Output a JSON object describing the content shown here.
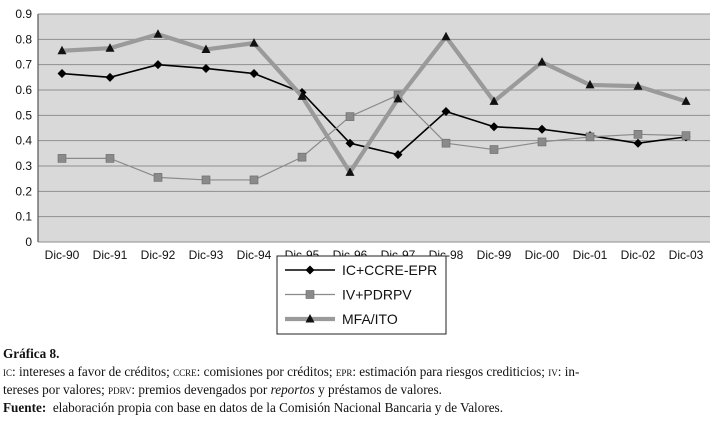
{
  "chart_data": {
    "type": "line",
    "categories": [
      "Dic-90",
      "Dic-91",
      "Dic-92",
      "Dic-93",
      "Dic-94",
      "Dic-95",
      "Dic-96",
      "Dic-97",
      "Dic-98",
      "Dic-99",
      "Dic-00",
      "Dic-01",
      "Dic-02",
      "Dic-03"
    ],
    "ylim": [
      0,
      0.9
    ],
    "yticks": [
      "0",
      "0.1",
      "0.2",
      "0.3",
      "0.4",
      "0.5",
      "0.6",
      "0.7",
      "0.8",
      "0.9"
    ],
    "grid": true,
    "legend_position": "bottom-center",
    "series": [
      {
        "name": "IC+CCRE-EPR",
        "values": [
          0.665,
          0.65,
          0.7,
          0.685,
          0.665,
          0.59,
          0.39,
          0.345,
          0.515,
          0.455,
          0.445,
          0.42,
          0.39,
          0.415
        ],
        "color": "#000000",
        "marker": "diamond"
      },
      {
        "name": "IV+PDRPV",
        "values": [
          0.33,
          0.33,
          0.255,
          0.245,
          0.245,
          0.335,
          0.495,
          0.58,
          0.39,
          0.365,
          0.395,
          0.415,
          0.425,
          0.42
        ],
        "color": "#8a8a8a",
        "marker": "square"
      },
      {
        "name": "MFA/ITO",
        "values": [
          0.755,
          0.765,
          0.82,
          0.76,
          0.785,
          0.575,
          0.275,
          0.565,
          0.81,
          0.555,
          0.71,
          0.62,
          0.615,
          0.555
        ],
        "color": "#9a9a9a",
        "marker": "triangle"
      }
    ]
  },
  "caption": {
    "title": "Gráfica 8.",
    "line1": [
      {
        "t": "IC",
        "sc": true
      },
      {
        "t": ": intereses a favor de créditos; "
      },
      {
        "t": "CCRE",
        "sc": true
      },
      {
        "t": ": comisiones por créditos; "
      },
      {
        "t": "EPR",
        "sc": true
      },
      {
        "t": ": estimación para riesgos crediticios; "
      },
      {
        "t": "IV",
        "sc": true
      },
      {
        "t": ": in-"
      }
    ],
    "line2": [
      {
        "t": "tereses por valores; "
      },
      {
        "t": "PDRV",
        "sc": true
      },
      {
        "t": ": premios devengados por "
      },
      {
        "t": "reportos",
        "it": true
      },
      {
        "t": " y préstamos de valores."
      }
    ],
    "source_label": "Fuente:",
    "source_text": "  elaboración propia con base en datos de la Comisión Nacional Bancaria y de Valores."
  }
}
